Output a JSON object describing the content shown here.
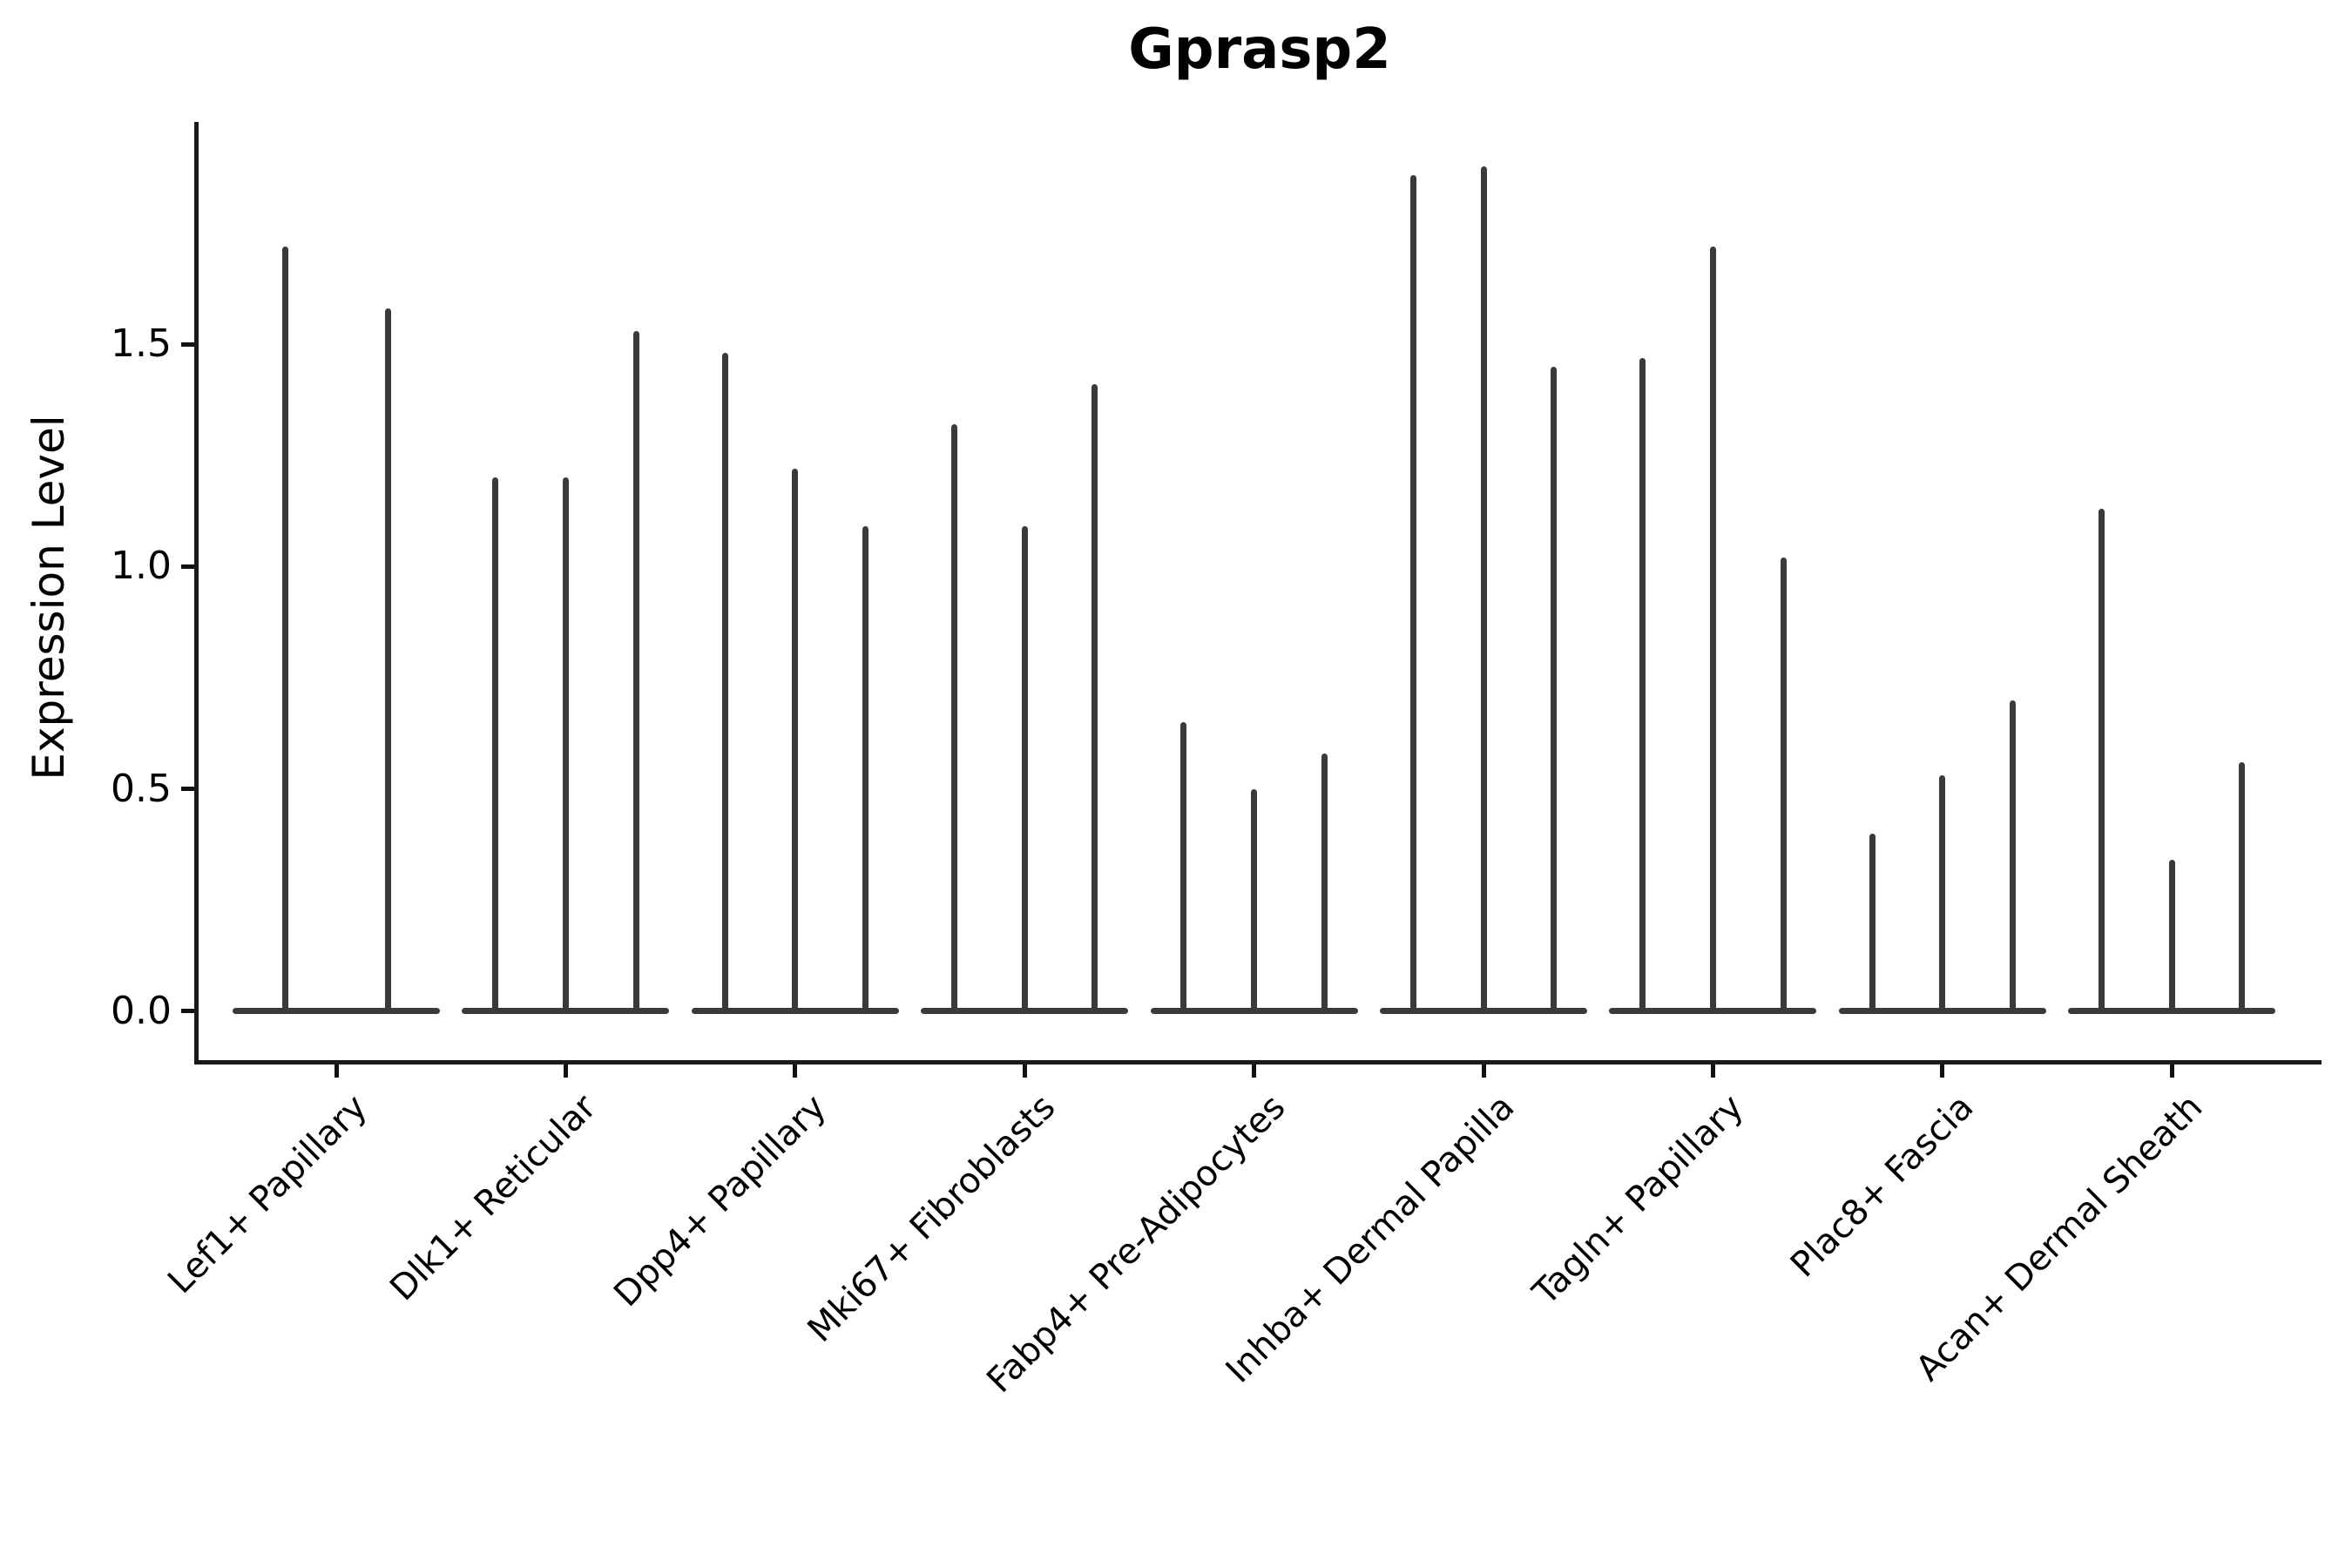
{
  "figure": {
    "title": "Gprasp2",
    "ylabel": "Expression Level"
  },
  "chart_data": {
    "type": "violin",
    "title": "Gprasp2",
    "xlabel": "",
    "ylabel": "Expression Level",
    "ylim": [
      -0.11,
      2.0
    ],
    "yticks": [
      0.0,
      0.5,
      1.0,
      1.5
    ],
    "ytick_labels": [
      "0.0",
      "0.5",
      "1.0",
      "1.5"
    ],
    "grid": false,
    "legend": "none",
    "line_color": "#3a3a3a",
    "spine_color": "#1a1a1a",
    "description": "Violin plot of Gprasp2 expression per fibroblast cluster; expression is concentrated at 0 so each violin collapses to a flat base at 0 with thin spikes rising to the maximum expression value.",
    "categories": [
      "Lef1+ Papillary",
      "Dlk1+ Reticular",
      "Dpp4+ Papillary",
      "Mki67+ Fibroblasts",
      "Fabp4+ Pre-Adipocytes",
      "Inhba+ Dermal Papilla",
      "Tagln+ Papillary",
      "Plac8+ Fascia",
      "Acan+ Dermal Sheath"
    ],
    "series": [
      {
        "category": "Lef1+ Papillary",
        "spike_max_values": [
          1.72,
          1.58
        ]
      },
      {
        "category": "Dlk1+ Reticular",
        "spike_max_values": [
          1.2,
          1.2,
          1.53
        ]
      },
      {
        "category": "Dpp4+ Papillary",
        "spike_max_values": [
          1.48,
          1.22,
          1.09
        ]
      },
      {
        "category": "Mki67+ Fibroblasts",
        "spike_max_values": [
          1.32,
          1.09,
          1.41
        ]
      },
      {
        "category": "Fabp4+ Pre-Adipocytes",
        "spike_max_values": [
          0.65,
          0.5,
          0.58
        ]
      },
      {
        "category": "Inhba+ Dermal Papilla",
        "spike_max_values": [
          1.88,
          1.9,
          1.45
        ]
      },
      {
        "category": "Tagln+ Papillary",
        "spike_max_values": [
          1.47,
          1.72,
          1.02
        ]
      },
      {
        "category": "Plac8+ Fascia",
        "spike_max_values": [
          0.4,
          0.53,
          0.7
        ]
      },
      {
        "category": "Acan+ Dermal Sheath",
        "spike_max_values": [
          1.13,
          0.34,
          0.56
        ]
      }
    ]
  }
}
